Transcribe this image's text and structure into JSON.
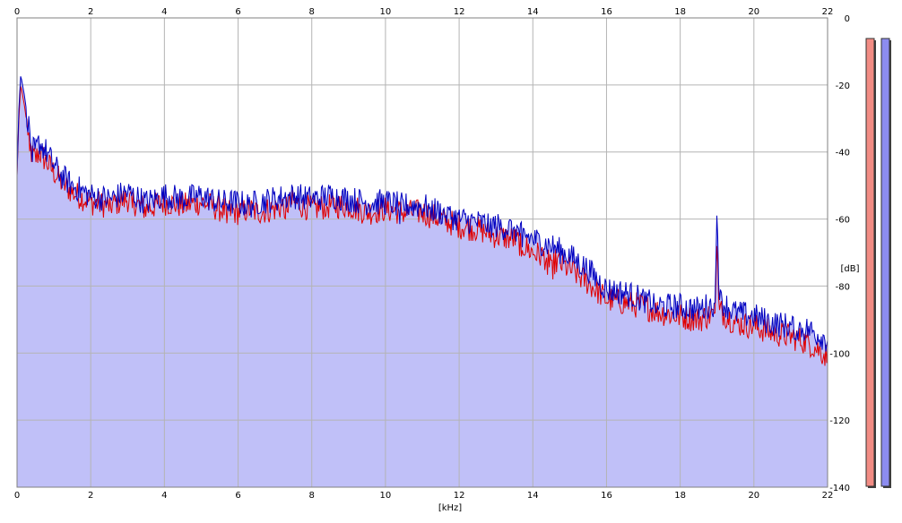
{
  "chart_data": {
    "type": "area",
    "xlabel": "[kHz]",
    "ylabel": "[dB]",
    "xlim": [
      0,
      22
    ],
    "ylim": [
      -140,
      0
    ],
    "x_ticks": [
      "0",
      "2",
      "4",
      "6",
      "8",
      "10",
      "12",
      "14",
      "16",
      "18",
      "20",
      "22"
    ],
    "y_ticks": [
      "0",
      "-20",
      "-40",
      "-60",
      "-80",
      "-100",
      "-120",
      "-140"
    ],
    "grid": true,
    "colors": {
      "fill": "#c0c0f8",
      "channel_1": "#e00000",
      "channel_2": "#0000c0",
      "grid": "#b4b4b4",
      "meter_1": "#f28c84",
      "meter_2": "#8c8cf0"
    },
    "series": [
      {
        "x": [
          0,
          0.05,
          0.1,
          0.15,
          0.2,
          0.3,
          0.4,
          0.5,
          0.6,
          0.8,
          1.0,
          1.2,
          1.5,
          2.0,
          2.5,
          3.0,
          3.5,
          4.0,
          4.5,
          5.0,
          5.5,
          6.0,
          6.3,
          6.5,
          7.0,
          7.5,
          8.0,
          8.5,
          9.0,
          9.5,
          10.0,
          10.5,
          11.0,
          11.5,
          12.0,
          12.5,
          13.0,
          13.5,
          14.0,
          14.5,
          15.0,
          15.5,
          16.0,
          16.5,
          17.0,
          17.5,
          18.0,
          18.5,
          18.95,
          19.0,
          19.05,
          19.5,
          20.0,
          20.5,
          21.0,
          21.5,
          22.0
        ],
        "y": [
          -47,
          -30,
          -20,
          -23,
          -26,
          -34,
          -41,
          -42,
          -40,
          -43,
          -46,
          -49,
          -52,
          -55,
          -56,
          -54,
          -57,
          -55,
          -56,
          -55,
          -57,
          -58,
          -57,
          -58,
          -57,
          -55,
          -57,
          -56,
          -56,
          -58,
          -57,
          -58,
          -58,
          -60,
          -62,
          -63,
          -65,
          -66,
          -70,
          -72,
          -75,
          -79,
          -84,
          -85,
          -86,
          -88,
          -89,
          -90,
          -88,
          -65,
          -87,
          -91,
          -92,
          -94,
          -95,
          -97,
          -101
        ]
      },
      {
        "x": [
          0,
          0.05,
          0.1,
          0.15,
          0.2,
          0.3,
          0.4,
          0.5,
          0.6,
          0.8,
          1.0,
          1.2,
          1.5,
          2.0,
          2.5,
          3.0,
          3.5,
          4.0,
          4.5,
          5.0,
          5.5,
          6.0,
          6.3,
          6.5,
          7.0,
          7.5,
          8.0,
          8.5,
          9.0,
          9.5,
          10.0,
          10.5,
          11.0,
          11.5,
          12.0,
          12.5,
          13.0,
          13.5,
          14.0,
          14.5,
          15.0,
          15.5,
          16.0,
          16.5,
          17.0,
          17.5,
          18.0,
          18.5,
          18.95,
          19.0,
          19.05,
          19.5,
          20.0,
          20.5,
          21.0,
          21.5,
          22.0
        ],
        "y": [
          -47,
          -27,
          -17,
          -20,
          -23,
          -31,
          -39,
          -40,
          -37,
          -40,
          -44,
          -47,
          -50,
          -53,
          -54,
          -52,
          -55,
          -53,
          -54,
          -53,
          -55,
          -55,
          -56,
          -55,
          -54,
          -53,
          -54,
          -53,
          -54,
          -55,
          -55,
          -56,
          -56,
          -58,
          -60,
          -61,
          -62,
          -63,
          -66,
          -68,
          -71,
          -75,
          -81,
          -82,
          -84,
          -86,
          -86,
          -87,
          -85,
          -55,
          -84,
          -88,
          -89,
          -91,
          -92,
          -93,
          -96
        ]
      }
    ]
  }
}
